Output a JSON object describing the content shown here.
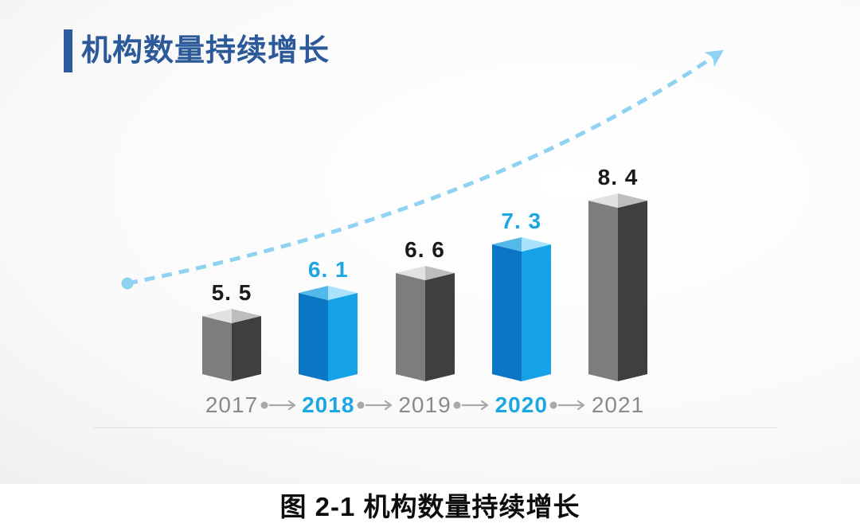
{
  "slide": {
    "title": "机构数量持续增长",
    "caption": "图 2-1 机构数量持续增长"
  },
  "colors": {
    "title_text": "#2b5999",
    "title_accent_bar": "#2e5b9e",
    "trend_curve": "#8fd2f2",
    "bar_blue_left": "#0b76c4",
    "bar_blue_right": "#17a2e8",
    "bar_blue_top_left": "#52b9e9",
    "bar_blue_top_right": "#a9e2fa",
    "bar_gray_left": "#7d7d7d",
    "bar_gray_right": "#3f3f3f",
    "bar_gray_top_left": "#e2e2e2",
    "bar_gray_top_right": "#bdbdbd",
    "label_black": "#1a1a1a",
    "label_blue": "#1ca6e4",
    "year_gray": "#8a8a8a",
    "connector_gray": "#a8a8a8",
    "floor_line": "#dedede",
    "caption_text": "#0d0d0d"
  },
  "chart_data": {
    "type": "bar",
    "title": "机构数量持续增长",
    "categories": [
      "2017",
      "2018",
      "2019",
      "2020",
      "2021"
    ],
    "values": [
      5.5,
      6.1,
      6.6,
      7.3,
      8.4
    ],
    "points": [
      {
        "year": "2017",
        "value": 5.5,
        "label": "5. 5",
        "highlighted": false
      },
      {
        "year": "2018",
        "value": 6.1,
        "label": "6. 1",
        "highlighted": true
      },
      {
        "year": "2019",
        "value": 6.6,
        "label": "6. 6",
        "highlighted": false
      },
      {
        "year": "2020",
        "value": 7.3,
        "label": "7. 3",
        "highlighted": true
      },
      {
        "year": "2021",
        "value": 8.4,
        "label": "8. 4",
        "highlighted": false
      }
    ],
    "highlighted_categories": [
      "2018",
      "2020"
    ],
    "annotations": [
      "dashed light-blue upward trend arrow from lower-left dot to upper-right arrowhead",
      "gray dot-arrow connectors between year labels"
    ],
    "xlabel": "",
    "ylabel": "",
    "ylim": [
      4,
      9
    ],
    "grid": false,
    "legend": false,
    "bar_style": "3d-prism"
  }
}
